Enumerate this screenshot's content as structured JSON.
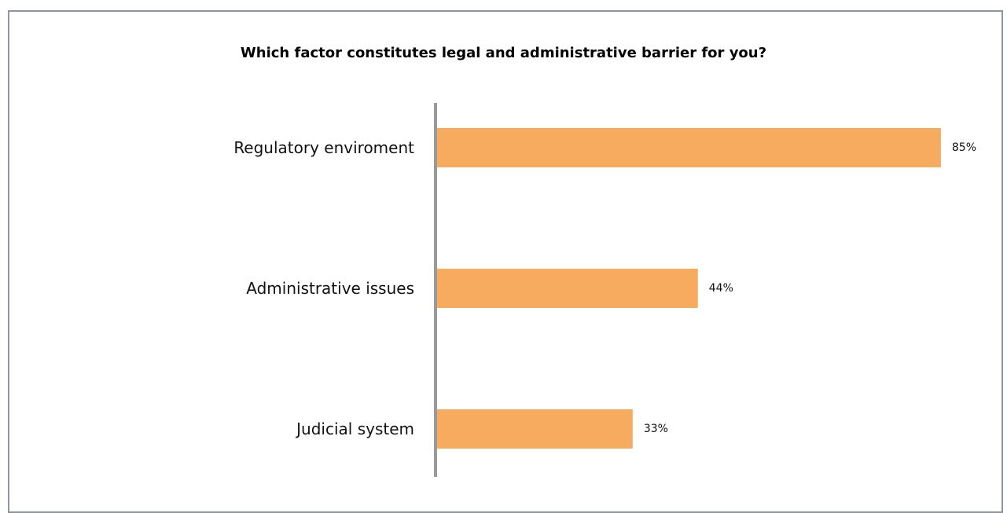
{
  "chart_data": {
    "type": "bar",
    "orientation": "horizontal",
    "title": "Which factor constitutes legal and administrative barrier for you?",
    "categories": [
      "Regulatory enviroment",
      "Administrative issues",
      "Judicial system"
    ],
    "values": [
      85,
      44,
      33
    ],
    "value_labels": [
      "85%",
      "44%",
      "33%"
    ],
    "unit": "%",
    "xlim": [
      0,
      100
    ],
    "grid": false,
    "legend": "none",
    "bar_color": "#f7ab5e",
    "axis_color": "#999999"
  }
}
